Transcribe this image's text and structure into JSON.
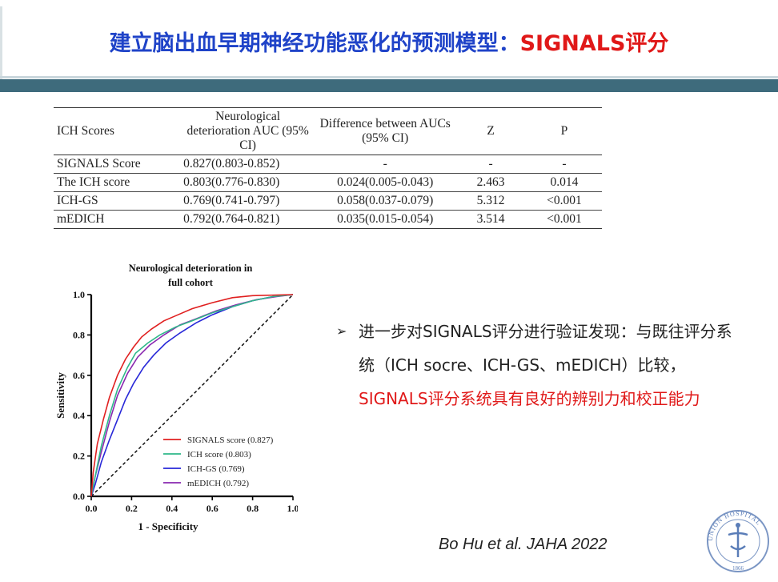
{
  "slide": {
    "title_main": "建立脑出血早期神经功能恶化的预测模型：",
    "title_highlight": "SIGNALS评分",
    "citation": "Bo Hu et al. JAHA 2022",
    "logo_text": "UNION HOSPITAL",
    "logo_year": "1866"
  },
  "table": {
    "headers": [
      "ICH Scores",
      "Neurological deterioration AUC (95% CI)",
      "Difference between AUCs (95% CI)",
      "Z",
      "P"
    ],
    "rows": [
      [
        "SIGNALS Score",
        "0.827(0.803-0.852)",
        "-",
        "-",
        "-"
      ],
      [
        "The ICH score",
        "0.803(0.776-0.830)",
        "0.024(0.005-0.043)",
        "2.463",
        "0.014"
      ],
      [
        "ICH-GS",
        "0.769(0.741-0.797)",
        "0.058(0.037-0.079)",
        "5.312",
        "<0.001"
      ],
      [
        "mEDICH",
        "0.792(0.764-0.821)",
        "0.035(0.015-0.054)",
        "3.514",
        "<0.001"
      ]
    ]
  },
  "bullet": {
    "text_before": "进一步对SIGNALS评分进行验证发现：与既往评分系统（ICH socre、ICH-GS、mEDICH）比较，",
    "text_highlight": "SIGNALS评分系统具有良好的辨别力和校正能力"
  },
  "colors": {
    "title_blue": "#1f43c8",
    "accent_red": "#e01818",
    "band": "#3e6b7c"
  },
  "chart_data": {
    "type": "line",
    "title": "Neurological deterioration  in full cohort",
    "xlabel": "1 - Specificity",
    "ylabel": "Sensitivity",
    "xlim": [
      0,
      1
    ],
    "ylim": [
      0,
      1
    ],
    "xticks": [
      "0.0",
      "0.2",
      "0.4",
      "0.6",
      "0.8",
      "1.0"
    ],
    "yticks": [
      "0.0",
      "0.2",
      "0.4",
      "0.6",
      "0.8",
      "1.0"
    ],
    "legend_position": "bottom-right",
    "reference_line": "diagonal dashed",
    "series": [
      {
        "name": "SIGNALS score (0.827)",
        "color": "#e02020",
        "points": [
          [
            0,
            0
          ],
          [
            0.01,
            0.12
          ],
          [
            0.03,
            0.26
          ],
          [
            0.06,
            0.38
          ],
          [
            0.09,
            0.49
          ],
          [
            0.13,
            0.6
          ],
          [
            0.17,
            0.68
          ],
          [
            0.21,
            0.74
          ],
          [
            0.25,
            0.79
          ],
          [
            0.3,
            0.83
          ],
          [
            0.36,
            0.87
          ],
          [
            0.43,
            0.9
          ],
          [
            0.5,
            0.93
          ],
          [
            0.6,
            0.96
          ],
          [
            0.7,
            0.985
          ],
          [
            0.8,
            0.995
          ],
          [
            1,
            1
          ]
        ]
      },
      {
        "name": "ICH score (0.803)",
        "color": "#2fb88a",
        "points": [
          [
            0,
            0
          ],
          [
            0.02,
            0.1
          ],
          [
            0.05,
            0.25
          ],
          [
            0.09,
            0.4
          ],
          [
            0.13,
            0.53
          ],
          [
            0.18,
            0.64
          ],
          [
            0.22,
            0.71
          ],
          [
            0.28,
            0.76
          ],
          [
            0.34,
            0.8
          ],
          [
            0.42,
            0.84
          ],
          [
            0.5,
            0.87
          ],
          [
            0.6,
            0.91
          ],
          [
            0.7,
            0.94
          ],
          [
            0.8,
            0.97
          ],
          [
            0.9,
            0.99
          ],
          [
            1,
            1
          ]
        ]
      },
      {
        "name": "ICH-GS (0.769)",
        "color": "#2828d8",
        "points": [
          [
            0,
            0
          ],
          [
            0.02,
            0.06
          ],
          [
            0.05,
            0.17
          ],
          [
            0.09,
            0.28
          ],
          [
            0.13,
            0.38
          ],
          [
            0.17,
            0.48
          ],
          [
            0.21,
            0.56
          ],
          [
            0.26,
            0.64
          ],
          [
            0.31,
            0.7
          ],
          [
            0.37,
            0.76
          ],
          [
            0.44,
            0.81
          ],
          [
            0.52,
            0.86
          ],
          [
            0.6,
            0.9
          ],
          [
            0.7,
            0.94
          ],
          [
            0.8,
            0.97
          ],
          [
            0.9,
            0.99
          ],
          [
            1,
            1
          ]
        ]
      },
      {
        "name": "mEDICH (0.792)",
        "color": "#8a28b0",
        "points": [
          [
            0,
            0
          ],
          [
            0.02,
            0.1
          ],
          [
            0.05,
            0.22
          ],
          [
            0.09,
            0.37
          ],
          [
            0.13,
            0.5
          ],
          [
            0.18,
            0.61
          ],
          [
            0.23,
            0.69
          ],
          [
            0.29,
            0.75
          ],
          [
            0.36,
            0.8
          ],
          [
            0.44,
            0.85
          ],
          [
            0.52,
            0.88
          ],
          [
            0.62,
            0.92
          ],
          [
            0.72,
            0.95
          ],
          [
            0.82,
            0.975
          ],
          [
            0.92,
            0.99
          ],
          [
            1,
            1
          ]
        ]
      }
    ]
  }
}
